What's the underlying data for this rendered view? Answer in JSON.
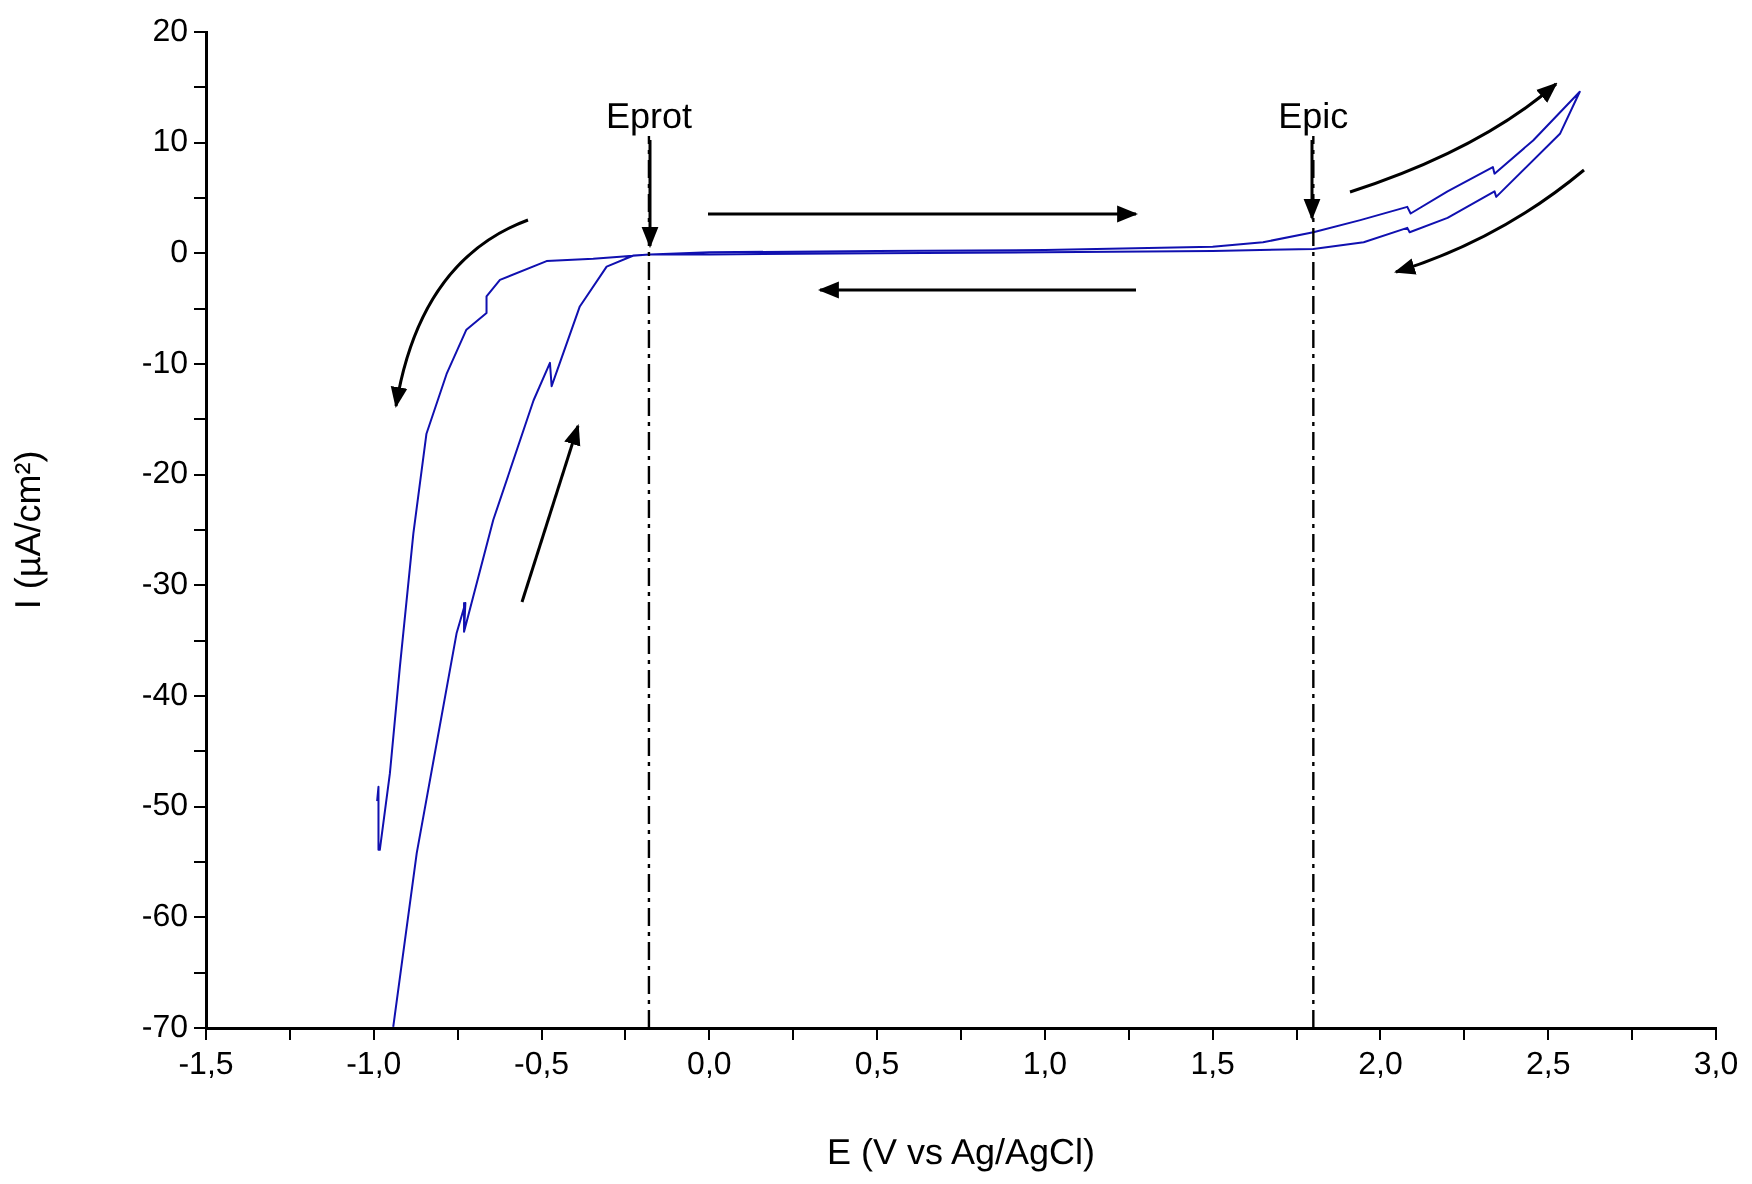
{
  "chart_data": {
    "type": "line",
    "xlabel": "E (V vs Ag/AgCl)",
    "ylabel": "I (µA/cm²)",
    "grid": false,
    "legend": false,
    "marker": "none",
    "line_style": "solid",
    "xlim": [
      -1.5,
      3.0
    ],
    "ylim": [
      -70,
      20
    ],
    "xticks": [
      {
        "value": -1.5,
        "label": "-1,5"
      },
      {
        "value": -1.25,
        "label": null
      },
      {
        "value": -1.0,
        "label": "-1,0"
      },
      {
        "value": -0.75,
        "label": null
      },
      {
        "value": -0.5,
        "label": "-0,5"
      },
      {
        "value": -0.25,
        "label": null
      },
      {
        "value": 0,
        "label": "0,0"
      },
      {
        "value": 0.25,
        "label": null
      },
      {
        "value": 0.5,
        "label": "0,5"
      },
      {
        "value": 0.75,
        "label": null
      },
      {
        "value": 1.0,
        "label": "1,0"
      },
      {
        "value": 1.25,
        "label": null
      },
      {
        "value": 1.5,
        "label": "1,5"
      },
      {
        "value": 1.75,
        "label": null
      },
      {
        "value": 2.0,
        "label": "2,0"
      },
      {
        "value": 2.25,
        "label": null
      },
      {
        "value": 2.5,
        "label": "2,5"
      },
      {
        "value": 2.75,
        "label": null
      },
      {
        "value": 3.0,
        "label": "3,0"
      }
    ],
    "yticks": [
      -70,
      {
        "value": -65,
        "label": null
      },
      -60,
      {
        "value": -55,
        "label": null
      },
      -50,
      {
        "value": -45,
        "label": null
      },
      -40,
      {
        "value": -35,
        "label": null
      },
      -30,
      {
        "value": -25,
        "label": null
      },
      -20,
      {
        "value": -15,
        "label": null
      },
      -10,
      {
        "value": -5,
        "label": null
      },
      0,
      {
        "value": 5,
        "label": null
      },
      10,
      {
        "value": 15,
        "label": null
      },
      20
    ],
    "series": [
      {
        "color": "#1010b0",
        "x": [
          -0.942,
          -0.872,
          -0.753,
          -0.727,
          -0.731,
          -0.644,
          -0.524,
          -0.475,
          -0.47,
          -0.386,
          -0.306,
          -0.226,
          -0.177,
          0.0,
          0.5,
          1.0,
          1.5,
          1.65,
          1.8,
          1.94,
          2.08,
          2.09,
          2.2,
          2.335,
          2.34,
          2.455,
          2.594,
          2.535,
          2.345,
          2.34,
          2.2,
          2.087,
          2.08,
          1.95,
          1.8,
          1.5,
          1.0,
          0.5,
          0.0,
          -0.18,
          -0.266,
          -0.346,
          -0.485,
          -0.624,
          -0.664,
          -0.664,
          -0.724,
          -0.783,
          -0.843,
          -0.882,
          -0.922,
          -0.952,
          -0.982,
          -0.986,
          -0.99
        ],
        "values": [
          -69.9,
          -54.2,
          -34.3,
          -31.6,
          -34.2,
          -24.1,
          -13.3,
          -9.9,
          -12.0,
          -4.8,
          -1.2,
          -0.2,
          -0.1,
          0.1,
          0.2,
          0.3,
          0.6,
          1.0,
          1.9,
          3.0,
          4.2,
          3.6,
          5.6,
          7.8,
          7.2,
          10.2,
          14.6,
          10.8,
          5.1,
          5.6,
          3.2,
          1.9,
          2.3,
          1.0,
          0.4,
          0.2,
          0.1,
          0.0,
          -0.1,
          -0.1,
          -0.3,
          -0.5,
          -0.7,
          -2.4,
          -3.9,
          -5.4,
          -6.9,
          -10.9,
          -16.3,
          -25.3,
          -37.3,
          -47.0,
          -53.9,
          -48.2,
          -49.5
        ]
      }
    ],
    "ref_lines": [
      {
        "axis": "x",
        "value": -0.18,
        "label": "Eprot",
        "color": "#000000",
        "line_style": "dashdot"
      },
      {
        "axis": "x",
        "value": 1.8,
        "label": "Epic",
        "color": "#000000",
        "line_style": "dashdot"
      }
    ]
  }
}
